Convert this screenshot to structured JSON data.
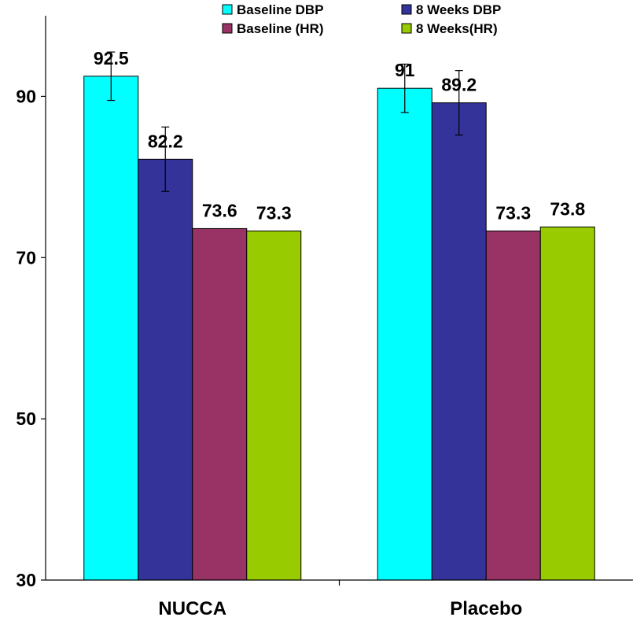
{
  "chart_data": {
    "type": "bar",
    "title": "",
    "xlabel": "",
    "ylabel": "",
    "ylim": [
      30,
      100
    ],
    "yticks": [
      30,
      50,
      70,
      90
    ],
    "grid": false,
    "legend_position": "top",
    "categories": [
      "NUCCA",
      "Placebo"
    ],
    "series": [
      {
        "name": "Baseline DBP",
        "color": "#00FFFF",
        "values": [
          92.5,
          91
        ],
        "labels": [
          "92.5",
          "91"
        ],
        "error": [
          3,
          3
        ]
      },
      {
        "name": "8 Weeks DBP",
        "color": "#333399",
        "values": [
          82.2,
          89.2
        ],
        "labels": [
          "82.2",
          "89.2"
        ],
        "error": [
          4,
          4
        ]
      },
      {
        "name": "Baseline (HR)",
        "color": "#993366",
        "values": [
          73.6,
          73.3
        ],
        "labels": [
          "73.6",
          "73.3"
        ],
        "error": null
      },
      {
        "name": "8 Weeks(HR)",
        "color": "#99CC00",
        "values": [
          73.3,
          73.8
        ],
        "labels": [
          "73.3",
          "73.8"
        ],
        "error": null
      }
    ]
  }
}
